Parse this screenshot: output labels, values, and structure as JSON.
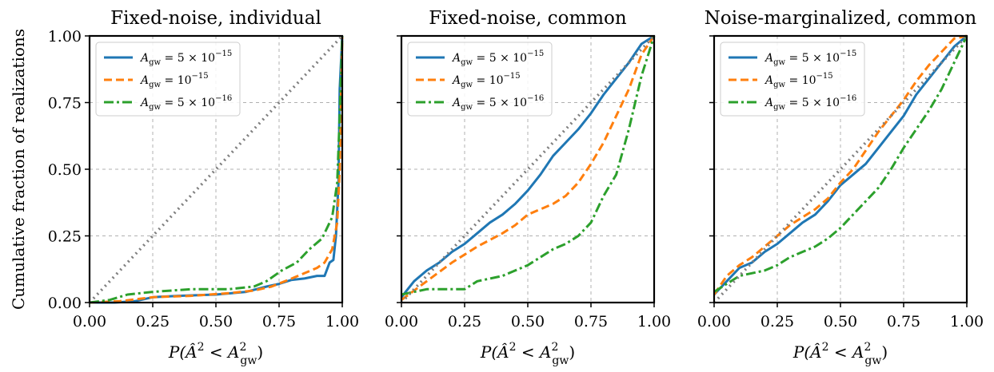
{
  "figure": {
    "ylabel": "Cumulative fraction of realizations"
  },
  "chart_data": [
    {
      "type": "line",
      "title": "Fixed-noise, individual",
      "xlabel": "P(Â² < A²gw)",
      "xlim": [
        0,
        1
      ],
      "ylim": [
        0,
        1
      ],
      "xticks": [
        "0.00",
        "0.25",
        "0.50",
        "0.75",
        "1.00"
      ],
      "yticks": [
        "0.00",
        "0.25",
        "0.50",
        "0.75",
        "1.00"
      ],
      "grid": true,
      "legend_position": "upper-left",
      "series": [
        {
          "name": "A_gw = 5×10^-15",
          "color": "#1f77b4",
          "dash": "solid",
          "x": [
            0,
            0.1,
            0.18,
            0.25,
            0.35,
            0.5,
            0.62,
            0.7,
            0.75,
            0.8,
            0.85,
            0.9,
            0.93,
            0.95,
            0.965,
            0.975,
            0.985,
            0.99,
            1.0
          ],
          "y": [
            0,
            0.0,
            0.005,
            0.02,
            0.025,
            0.03,
            0.04,
            0.06,
            0.07,
            0.085,
            0.09,
            0.1,
            0.1,
            0.15,
            0.16,
            0.25,
            0.45,
            0.8,
            1.0
          ]
        },
        {
          "name": "A_gw = 10^-15",
          "color": "#ff7f0e",
          "dash": "dashed",
          "x": [
            0,
            0.12,
            0.25,
            0.4,
            0.55,
            0.65,
            0.72,
            0.8,
            0.85,
            0.9,
            0.93,
            0.96,
            0.98,
            0.99,
            1.0
          ],
          "y": [
            0,
            0.005,
            0.02,
            0.025,
            0.035,
            0.045,
            0.06,
            0.09,
            0.11,
            0.13,
            0.15,
            0.2,
            0.3,
            0.5,
            1.0
          ]
        },
        {
          "name": "A_gw = 5×10^-16",
          "color": "#2ca02c",
          "dash": "dashdot",
          "x": [
            0,
            0.08,
            0.15,
            0.25,
            0.4,
            0.55,
            0.65,
            0.7,
            0.76,
            0.82,
            0.87,
            0.92,
            0.96,
            0.98,
            0.99,
            1.0
          ],
          "y": [
            0,
            0.01,
            0.03,
            0.04,
            0.05,
            0.05,
            0.06,
            0.08,
            0.12,
            0.15,
            0.2,
            0.24,
            0.32,
            0.45,
            0.7,
            1.0
          ]
        },
        {
          "name": "",
          "color": "#7f7f7f",
          "dash": "dotted",
          "x": [
            0,
            1
          ],
          "y": [
            0,
            1
          ]
        }
      ],
      "legend": [
        {
          "prefix": "A",
          "sub": "gw",
          "suffix": " = 5 × 10",
          "sup": "−15",
          "color": "#1f77b4",
          "dash": "solid"
        },
        {
          "prefix": "A",
          "sub": "gw",
          "suffix": " = 10",
          "sup": "−15",
          "color": "#ff7f0e",
          "dash": "dashed"
        },
        {
          "prefix": "A",
          "sub": "gw",
          "suffix": " = 5 × 10",
          "sup": "−16",
          "color": "#2ca02c",
          "dash": "dashdot"
        }
      ]
    },
    {
      "type": "line",
      "title": "Fixed-noise, common",
      "xlabel": "P(Â² < A²gw)",
      "xlim": [
        0,
        1
      ],
      "ylim": [
        0,
        1
      ],
      "xticks": [
        "0.00",
        "0.25",
        "0.50",
        "0.75",
        "1.00"
      ],
      "grid": true,
      "legend_position": "upper-left",
      "series": [
        {
          "name": "A_gw = 5×10^-15",
          "color": "#1f77b4",
          "dash": "solid",
          "x": [
            0,
            0.05,
            0.1,
            0.15,
            0.2,
            0.25,
            0.3,
            0.35,
            0.4,
            0.45,
            0.5,
            0.55,
            0.6,
            0.65,
            0.7,
            0.75,
            0.8,
            0.85,
            0.9,
            0.95,
            1.0
          ],
          "y": [
            0.02,
            0.08,
            0.12,
            0.15,
            0.19,
            0.22,
            0.26,
            0.3,
            0.33,
            0.37,
            0.42,
            0.48,
            0.55,
            0.6,
            0.65,
            0.71,
            0.78,
            0.84,
            0.9,
            0.97,
            1.0
          ]
        },
        {
          "name": "A_gw = 10^-15",
          "color": "#ff7f0e",
          "dash": "dashed",
          "x": [
            0,
            0.1,
            0.2,
            0.3,
            0.4,
            0.45,
            0.5,
            0.55,
            0.6,
            0.65,
            0.7,
            0.75,
            0.8,
            0.85,
            0.9,
            0.95,
            1.0
          ],
          "y": [
            0.01,
            0.08,
            0.15,
            0.21,
            0.26,
            0.29,
            0.33,
            0.35,
            0.37,
            0.4,
            0.45,
            0.52,
            0.6,
            0.7,
            0.8,
            0.93,
            1.0
          ]
        },
        {
          "name": "A_gw = 5×10^-16",
          "color": "#2ca02c",
          "dash": "dashdot",
          "x": [
            0,
            0.1,
            0.25,
            0.3,
            0.4,
            0.45,
            0.5,
            0.55,
            0.6,
            0.65,
            0.7,
            0.75,
            0.8,
            0.85,
            0.9,
            0.95,
            1.0
          ],
          "y": [
            0.03,
            0.05,
            0.05,
            0.08,
            0.1,
            0.12,
            0.14,
            0.17,
            0.2,
            0.22,
            0.25,
            0.3,
            0.4,
            0.48,
            0.65,
            0.85,
            1.0
          ]
        },
        {
          "name": "",
          "color": "#7f7f7f",
          "dash": "dotted",
          "x": [
            0,
            1
          ],
          "y": [
            0,
            1
          ]
        }
      ],
      "legend": [
        {
          "prefix": "A",
          "sub": "gw",
          "suffix": " = 5 × 10",
          "sup": "−15",
          "color": "#1f77b4",
          "dash": "solid"
        },
        {
          "prefix": "A",
          "sub": "gw",
          "suffix": " = 10",
          "sup": "−15",
          "color": "#ff7f0e",
          "dash": "dashed"
        },
        {
          "prefix": "A",
          "sub": "gw",
          "suffix": " = 5 × 10",
          "sup": "−16",
          "color": "#2ca02c",
          "dash": "dashdot"
        }
      ]
    },
    {
      "type": "line",
      "title": "Noise-marginalized, common",
      "xlabel": "P(Â² < A²gw)",
      "xlim": [
        0,
        1
      ],
      "ylim": [
        0,
        1
      ],
      "xticks": [
        "0.00",
        "0.25",
        "0.50",
        "0.75",
        "1.00"
      ],
      "grid": true,
      "legend_position": "upper-left",
      "series": [
        {
          "name": "A_gw = 5×10^-15",
          "color": "#1f77b4",
          "dash": "solid",
          "x": [
            0,
            0.05,
            0.1,
            0.15,
            0.2,
            0.25,
            0.3,
            0.35,
            0.4,
            0.45,
            0.5,
            0.55,
            0.6,
            0.65,
            0.7,
            0.75,
            0.8,
            0.85,
            0.9,
            0.95,
            1.0
          ],
          "y": [
            0.03,
            0.08,
            0.13,
            0.15,
            0.19,
            0.22,
            0.26,
            0.3,
            0.33,
            0.38,
            0.44,
            0.48,
            0.52,
            0.58,
            0.64,
            0.7,
            0.78,
            0.84,
            0.9,
            0.96,
            1.0
          ]
        },
        {
          "name": "A_gw = 10^-15",
          "color": "#ff7f0e",
          "dash": "dashed",
          "x": [
            0,
            0.05,
            0.1,
            0.15,
            0.2,
            0.25,
            0.3,
            0.35,
            0.4,
            0.45,
            0.5,
            0.55,
            0.6,
            0.65,
            0.7,
            0.75,
            0.8,
            0.85,
            0.9,
            0.95,
            1.0
          ],
          "y": [
            0.03,
            0.1,
            0.14,
            0.17,
            0.21,
            0.25,
            0.29,
            0.32,
            0.35,
            0.39,
            0.45,
            0.5,
            0.57,
            0.64,
            0.7,
            0.76,
            0.83,
            0.89,
            0.94,
            0.99,
            1.0
          ]
        },
        {
          "name": "A_gw = 5×10^-16",
          "color": "#2ca02c",
          "dash": "dashdot",
          "x": [
            0,
            0.1,
            0.2,
            0.25,
            0.3,
            0.35,
            0.4,
            0.45,
            0.5,
            0.55,
            0.6,
            0.65,
            0.7,
            0.75,
            0.8,
            0.85,
            0.9,
            0.95,
            1.0
          ],
          "y": [
            0.04,
            0.1,
            0.12,
            0.14,
            0.17,
            0.19,
            0.21,
            0.24,
            0.28,
            0.33,
            0.38,
            0.43,
            0.5,
            0.58,
            0.65,
            0.72,
            0.8,
            0.9,
            1.0
          ]
        },
        {
          "name": "",
          "color": "#7f7f7f",
          "dash": "dotted",
          "x": [
            0,
            1
          ],
          "y": [
            0,
            1
          ]
        }
      ],
      "legend": [
        {
          "prefix": "A",
          "sub": "gw",
          "suffix": " = 5 × 10",
          "sup": "−15",
          "color": "#1f77b4",
          "dash": "solid"
        },
        {
          "prefix": "A",
          "sub": "gw",
          "suffix": " = 10",
          "sup": "−15",
          "color": "#ff7f0e",
          "dash": "dashed"
        },
        {
          "prefix": "A",
          "sub": "gw",
          "suffix": " = 5 × 10",
          "sup": "−16",
          "color": "#2ca02c",
          "dash": "dashdot"
        }
      ]
    }
  ]
}
